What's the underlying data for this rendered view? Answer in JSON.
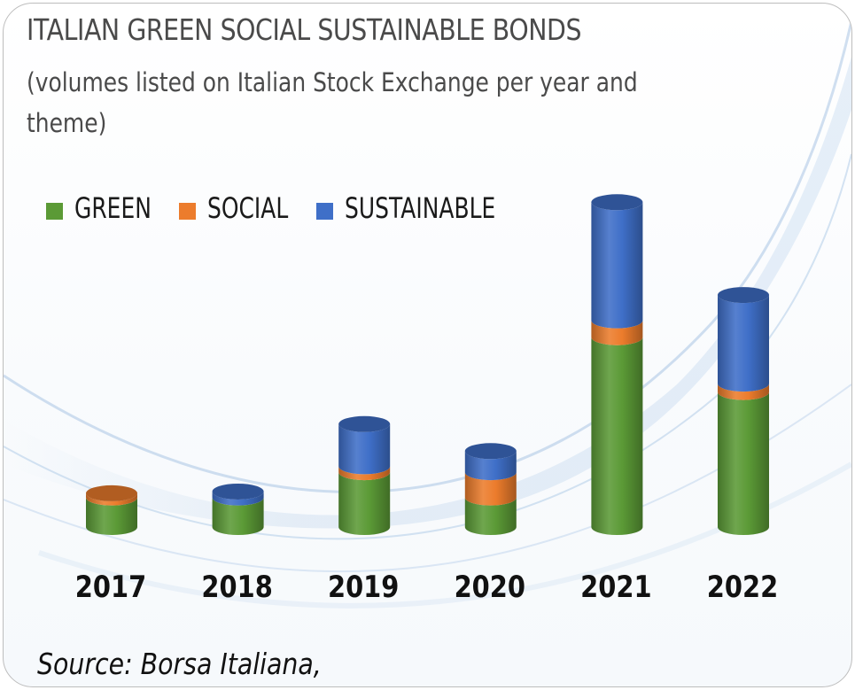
{
  "title": "ITALIAN GREEN SOCIAL SUSTAINABLE BONDS",
  "subtitle": "(volumes listed on Italian Stock Exchange per year and theme)",
  "source": "Source: Borsa Italiana,",
  "colors": {
    "green": "#5b9a36",
    "social": "#ec7c2c",
    "sustainable": "#3f6fc8"
  },
  "chart_data": {
    "type": "bar",
    "stacked": true,
    "style": "3d-cylinder",
    "categories": [
      "2017",
      "2018",
      "2019",
      "2020",
      "2021",
      "2022"
    ],
    "series": [
      {
        "name": "GREEN",
        "values": [
          3.5,
          3.5,
          6.5,
          3.5,
          22.5,
          16.0
        ]
      },
      {
        "name": "SOCIAL",
        "values": [
          0.5,
          0.0,
          0.7,
          3.0,
          2.0,
          1.0
        ]
      },
      {
        "name": "SUSTAINABLE",
        "values": [
          0.0,
          0.7,
          5.0,
          2.5,
          14.0,
          10.5
        ]
      }
    ],
    "ylim": [
      0,
      40
    ],
    "grid": false,
    "legend_position": "top-left"
  }
}
